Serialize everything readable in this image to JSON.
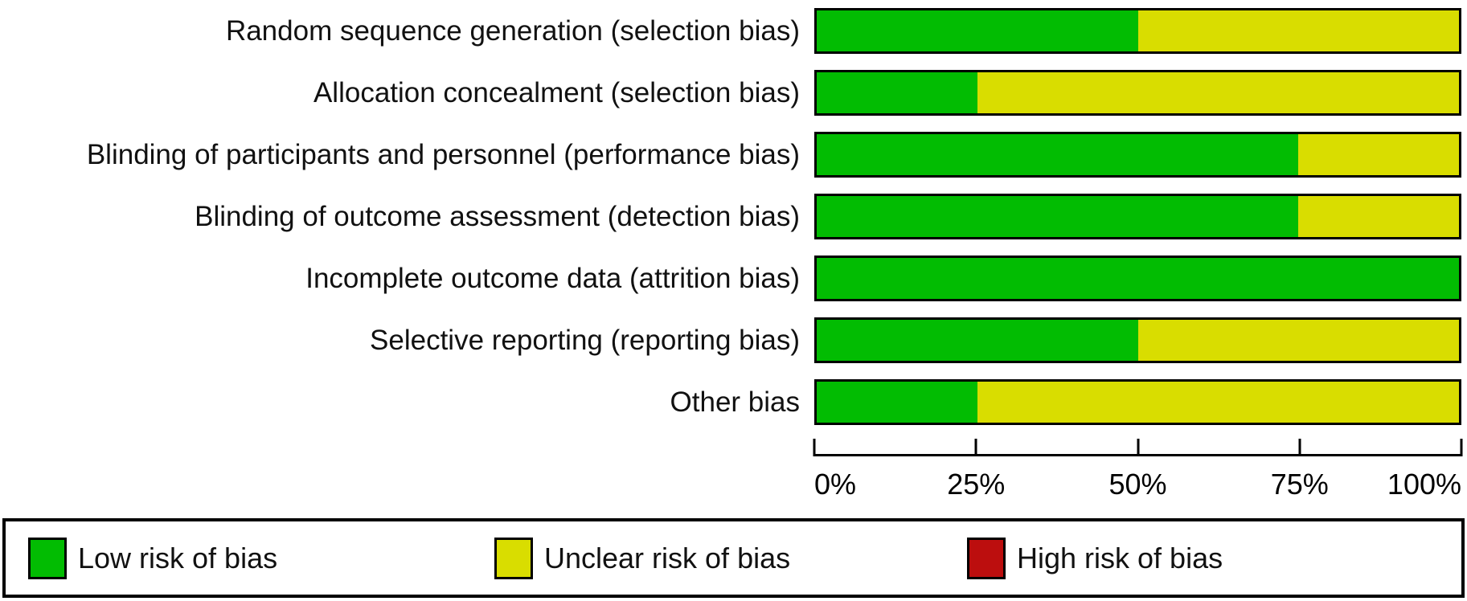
{
  "chart_data": {
    "type": "bar",
    "variant": "horizontal-stacked-percent",
    "title": "",
    "xlabel": "",
    "ylabel": "",
    "xlim": [
      0,
      100
    ],
    "grid": false,
    "legend_position": "bottom",
    "categories": [
      "Random sequence generation (selection bias)",
      "Allocation concealment (selection bias)",
      "Blinding of participants and personnel (performance bias)",
      "Blinding of outcome assessment (detection bias)",
      "Incomplete outcome data (attrition bias)",
      "Selective reporting (reporting bias)",
      "Other bias"
    ],
    "series": [
      {
        "name": "Low risk of bias",
        "color": "#02bc02",
        "values": [
          50,
          25,
          75,
          75,
          100,
          50,
          25
        ]
      },
      {
        "name": "Unclear risk of bias",
        "color": "#d9dd00",
        "values": [
          50,
          75,
          25,
          25,
          0,
          50,
          75
        ]
      },
      {
        "name": "High risk of bias",
        "color": "#bc0e0e",
        "values": [
          0,
          0,
          0,
          0,
          0,
          0,
          0
        ]
      }
    ],
    "axis": {
      "ticks": [
        {
          "label": "0%",
          "pos": 0
        },
        {
          "label": "25%",
          "pos": 25
        },
        {
          "label": "50%",
          "pos": 50
        },
        {
          "label": "75%",
          "pos": 75
        },
        {
          "label": "100%",
          "pos": 100
        }
      ]
    },
    "legend": [
      {
        "label": "Low risk of bias",
        "color": "#02bc02"
      },
      {
        "label": "Unclear risk of bias",
        "color": "#d9dd00"
      },
      {
        "label": "High risk of bias",
        "color": "#bc0e0e"
      }
    ]
  }
}
